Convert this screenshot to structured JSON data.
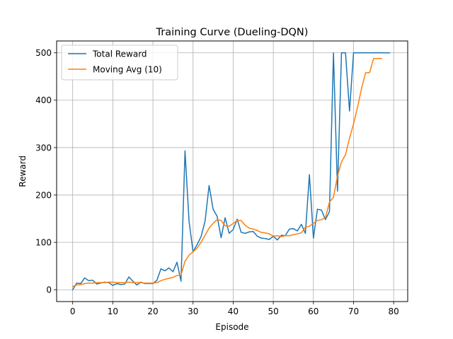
{
  "chart_data": {
    "type": "line",
    "title": "Training Curve (Dueling-DQN)",
    "xlabel": "Episode",
    "ylabel": "Reward",
    "xlim": [
      -4,
      83.5
    ],
    "ylim": [
      -25,
      525
    ],
    "xticks": [
      0,
      10,
      20,
      30,
      40,
      50,
      60,
      70,
      80
    ],
    "yticks": [
      0,
      100,
      200,
      300,
      400,
      500
    ],
    "grid": true,
    "legend_position": "top-left",
    "series": [
      {
        "name": "Total Reward",
        "color": "#1f77b4",
        "x": [
          0,
          1,
          2,
          3,
          4,
          5,
          6,
          7,
          8,
          9,
          10,
          11,
          12,
          13,
          14,
          15,
          16,
          17,
          18,
          19,
          20,
          21,
          22,
          23,
          24,
          25,
          26,
          27,
          28,
          29,
          30,
          31,
          32,
          33,
          34,
          35,
          36,
          37,
          38,
          39,
          40,
          41,
          42,
          43,
          44,
          45,
          46,
          47,
          48,
          49,
          50,
          51,
          52,
          53,
          54,
          55,
          56,
          57,
          58,
          59,
          60,
          61,
          62,
          63,
          64,
          65,
          66,
          67,
          68,
          69,
          70,
          71,
          72,
          73,
          74,
          75,
          76,
          77,
          78,
          79
        ],
        "y": [
          0,
          14,
          13,
          25,
          19,
          20,
          12,
          14,
          16,
          15,
          9,
          13,
          11,
          12,
          27,
          18,
          10,
          16,
          13,
          13,
          13,
          20,
          44,
          40,
          46,
          38,
          58,
          18,
          293,
          145,
          80,
          95,
          112,
          145,
          220,
          170,
          155,
          110,
          152,
          119,
          127,
          149,
          121,
          119,
          122,
          123,
          113,
          109,
          108,
          106,
          113,
          105,
          115,
          114,
          128,
          129,
          124,
          138,
          119,
          243,
          109,
          170,
          168,
          148,
          165,
          500,
          208,
          500,
          500,
          377,
          500,
          500,
          500,
          500,
          500,
          500,
          500,
          500,
          500,
          500
        ]
      },
      {
        "name": "Moving Avg (10)",
        "color": "#ff7f0e",
        "x": [
          0,
          1,
          2,
          3,
          4,
          5,
          6,
          7,
          8,
          9,
          10,
          11,
          12,
          13,
          14,
          15,
          16,
          17,
          18,
          19,
          20,
          21,
          22,
          23,
          24,
          25,
          26,
          27,
          28,
          29,
          30,
          31,
          32,
          33,
          34,
          35,
          36,
          37,
          38,
          39,
          40,
          41,
          42,
          43,
          44,
          45,
          46,
          47,
          48,
          49,
          50,
          51,
          52,
          53,
          54,
          55,
          56,
          57,
          58,
          59,
          60,
          61,
          62,
          63,
          64,
          65,
          66,
          67,
          68,
          69,
          70,
          71,
          72,
          73,
          74,
          75,
          76,
          77
        ],
        "y": [
          7,
          10,
          11,
          13,
          14,
          14,
          15,
          15,
          15,
          16,
          16,
          15,
          15,
          15,
          16,
          15,
          15,
          15,
          14,
          14,
          14,
          15,
          19,
          22,
          24,
          26,
          30,
          31,
          60,
          73,
          80,
          88,
          100,
          115,
          130,
          140,
          148,
          146,
          135,
          134,
          140,
          146,
          146,
          136,
          130,
          128,
          125,
          121,
          120,
          118,
          113,
          114,
          112,
          114,
          114,
          116,
          118,
          120,
          132,
          134,
          140,
          146,
          148,
          152,
          185,
          195,
          240,
          270,
          285,
          320,
          350,
          385,
          425,
          458,
          458,
          488,
          488,
          488
        ]
      }
    ]
  }
}
